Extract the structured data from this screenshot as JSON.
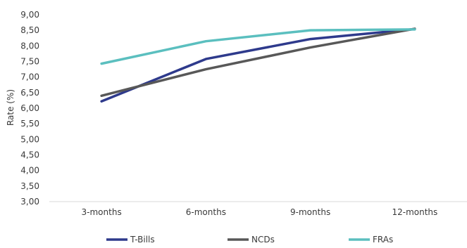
{
  "chart_data": {
    "type": "line",
    "categories": [
      "3-months",
      "6-months",
      "9-months",
      "12-months"
    ],
    "series": [
      {
        "name": "T-Bills",
        "values": [
          6.22,
          7.58,
          8.22,
          8.54
        ],
        "color": "#2e3a8c"
      },
      {
        "name": "NCDs",
        "values": [
          6.4,
          7.25,
          7.95,
          8.55
        ],
        "color": "#585858"
      },
      {
        "name": "FRAs",
        "values": [
          7.43,
          8.15,
          8.5,
          8.53
        ],
        "color": "#5bbfbf"
      }
    ],
    "ylabel": "Rate (%)",
    "ylim": [
      3.0,
      9.0
    ],
    "yticks": [
      "9,00",
      "8,50",
      "8,00",
      "7,50",
      "7,00",
      "6,50",
      "6,00",
      "5,50",
      "5,00",
      "4,50",
      "4,00",
      "3,50",
      "3,00"
    ],
    "grid": false,
    "legend_position": "bottom"
  }
}
